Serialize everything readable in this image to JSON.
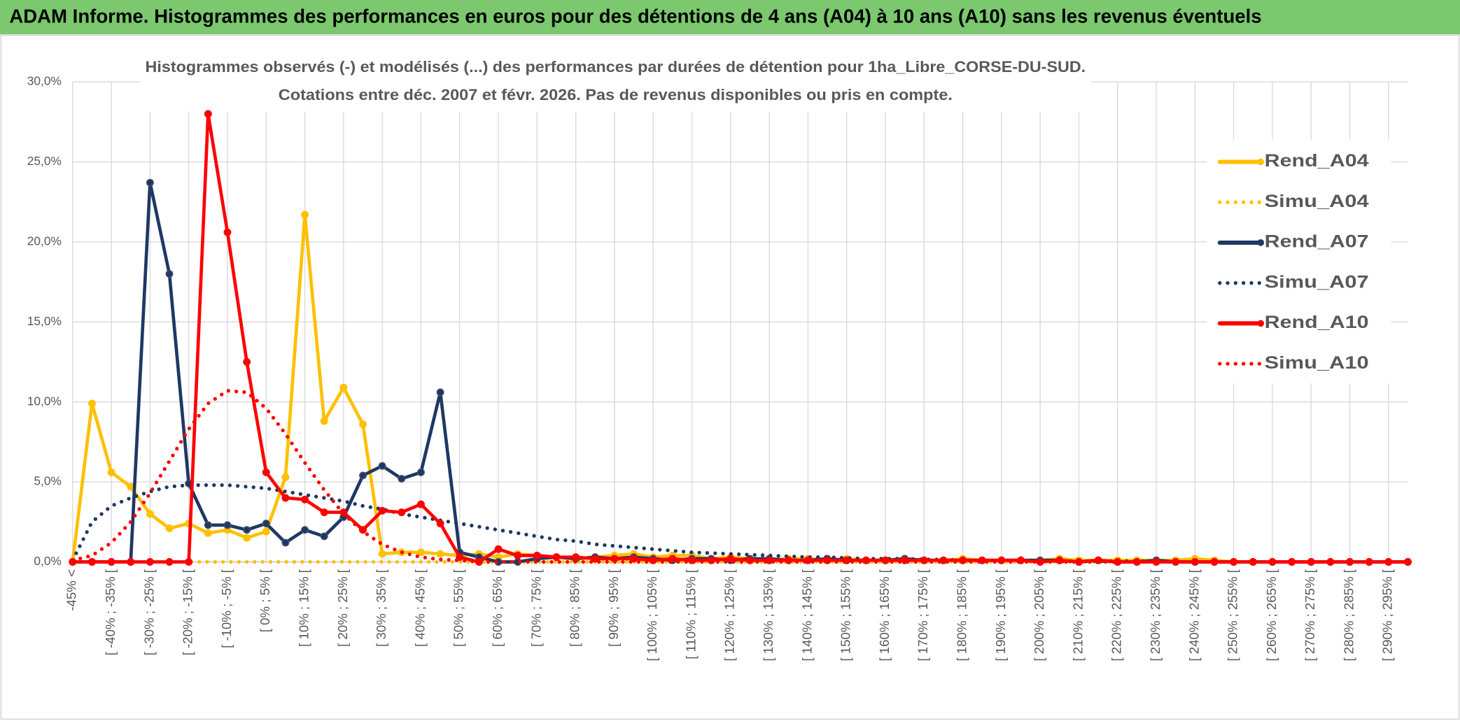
{
  "chart_data": {
    "type": "line",
    "title": "ADAM Informe. Histogrammes des performances en euros pour des détentions de 4 ans (A04) à 10 ans (A10) sans les revenus éventuels",
    "subtitle_lines": [
      "Histogrammes observés (-) et modélisés (...) des performances par durées de détention pour 1ha_Libre_CORSE-DU-SUD.",
      "Cotations entre déc. 2007 et févr. 2026. Pas de revenus disponibles ou pris en compte."
    ],
    "categories": [
      "-45% <",
      null,
      "[ -40% ; -35% [",
      null,
      "[ -30% ; -25% [",
      null,
      "[ -20% ; -15% [",
      null,
      "[ -10% ; -5% [",
      null,
      "[ 0% ; 5% [",
      null,
      "[ 10% ; 15% [",
      null,
      "[ 20% ; 25% [",
      null,
      "[ 30% ; 35% [",
      null,
      "[ 40% ; 45% [",
      null,
      "[ 50% ; 55% [",
      null,
      "[ 60% ; 65% [",
      null,
      "[ 70% ; 75% [",
      null,
      "[ 80% ; 85% [",
      null,
      "[ 90% ; 95% [",
      null,
      "[ 100% ; 105% [",
      null,
      "[ 110% ; 115% [",
      null,
      "[ 120% ; 125% [",
      null,
      "[ 130% ; 135% [",
      null,
      "[ 140% ; 145% [",
      null,
      "[ 150% ; 155% [",
      null,
      "[ 160% ; 165% [",
      null,
      "[ 170% ; 175% [",
      null,
      "[ 180% ; 185% [",
      null,
      "[ 190% ; 195% [",
      null,
      "[ 200% ; 205% [",
      null,
      "[ 210% ; 215% [",
      null,
      "[ 220% ; 225% [",
      null,
      "[ 230% ; 235% [",
      null,
      "[ 240% ; 245% [",
      null,
      "[ 250% ; 255% [",
      null,
      "[ 260% ; 265% [",
      null,
      "[ 270% ; 275% [",
      null,
      "[ 280% ; 285% [",
      null,
      "[ 290% ; 295% [",
      null
    ],
    "series": [
      {
        "name": "Rend_A04",
        "color": "#FFC000",
        "style": "solid",
        "values": [
          0,
          9.9,
          5.6,
          4.7,
          3.0,
          2.1,
          2.4,
          1.8,
          2.0,
          1.5,
          1.9,
          5.3,
          21.7,
          8.8,
          10.9,
          8.6,
          0.5,
          0.6,
          0.6,
          0.5,
          0.4,
          0.5,
          0.3,
          0.5,
          0.4,
          0.3,
          0.2,
          0.3,
          0.4,
          0.5,
          0.3,
          0.4,
          0.4,
          0.2,
          0.3,
          0.2,
          0.1,
          0.2,
          0.2,
          0.1,
          0.2,
          0.1,
          0.1,
          0.2,
          0.1,
          0.1,
          0.2,
          0.1,
          0.1,
          0.1,
          0.1,
          0.2,
          0.1,
          0.1,
          0.1,
          0.1,
          0.1,
          0.1,
          0.2,
          0.1,
          0,
          0,
          0,
          0,
          0,
          0,
          0,
          0,
          0,
          0
        ]
      },
      {
        "name": "Simu_A04",
        "color": "#FFC000",
        "style": "dotted",
        "values": [
          0,
          0,
          0,
          0,
          0,
          0,
          0,
          0,
          0,
          0,
          0,
          0,
          0,
          0,
          0,
          0,
          0,
          0,
          0,
          0,
          0,
          0,
          0,
          0,
          0,
          0,
          0,
          0,
          0,
          0,
          0,
          0,
          0,
          0,
          0,
          0,
          0,
          0,
          0,
          0,
          0,
          0,
          0,
          0,
          0,
          0,
          0,
          0,
          0,
          0,
          0,
          0,
          0,
          0,
          0,
          0,
          0,
          0,
          0,
          0,
          0,
          0,
          0,
          0,
          0,
          0,
          0,
          0,
          0,
          0
        ]
      },
      {
        "name": "Rend_A07",
        "color": "#1F3864",
        "style": "solid",
        "values": [
          0,
          0,
          0,
          0,
          23.7,
          18.0,
          4.9,
          2.3,
          2.3,
          2.0,
          2.4,
          1.2,
          2.0,
          1.6,
          2.8,
          5.4,
          6.0,
          5.2,
          5.6,
          10.6,
          0.6,
          0.3,
          0,
          0,
          0.2,
          0.3,
          0.2,
          0.3,
          0.2,
          0.3,
          0.2,
          0.1,
          0.2,
          0.2,
          0.1,
          0.2,
          0.2,
          0.1,
          0.1,
          0.2,
          0.1,
          0.1,
          0.1,
          0.2,
          0.1,
          0.1,
          0.1,
          0.1,
          0.1,
          0.1,
          0.1,
          0.1,
          0,
          0.1,
          0,
          0,
          0.1,
          0,
          0,
          0,
          0,
          0,
          0,
          0,
          0,
          0,
          0,
          0,
          0,
          0
        ]
      },
      {
        "name": "Simu_A07",
        "color": "#1F3864",
        "style": "dotted",
        "values": [
          0.1,
          2.5,
          3.5,
          4.0,
          4.4,
          4.7,
          4.8,
          4.8,
          4.8,
          4.7,
          4.6,
          4.4,
          4.2,
          4.0,
          3.8,
          3.5,
          3.3,
          3.0,
          2.8,
          2.6,
          2.4,
          2.2,
          2.0,
          1.8,
          1.6,
          1.4,
          1.3,
          1.1,
          1.0,
          0.9,
          0.8,
          0.7,
          0.6,
          0.55,
          0.5,
          0.45,
          0.4,
          0.35,
          0.3,
          0.3,
          0.25,
          0.2,
          0.2,
          0.2,
          0.15,
          0.15,
          0.1,
          0.1,
          0.1,
          0.1,
          0.1,
          0.05,
          0.05,
          0.05,
          0.05,
          0.05,
          0.05,
          0,
          0,
          0,
          0,
          0,
          0,
          0,
          0,
          0,
          0,
          0,
          0,
          0
        ]
      },
      {
        "name": "Rend_A10",
        "color": "#FF0000",
        "style": "solid",
        "values": [
          0,
          0,
          0,
          0,
          0,
          0,
          0,
          28.0,
          20.6,
          12.5,
          5.6,
          4.0,
          3.9,
          3.1,
          3.1,
          2.0,
          3.2,
          3.1,
          3.6,
          2.4,
          0.3,
          0,
          0.8,
          0.4,
          0.4,
          0.3,
          0.3,
          0.2,
          0.2,
          0.2,
          0.1,
          0.2,
          0.1,
          0.1,
          0.2,
          0.1,
          0.1,
          0.1,
          0.1,
          0.1,
          0.1,
          0.1,
          0.1,
          0.1,
          0.1,
          0.1,
          0.1,
          0.1,
          0.1,
          0.1,
          0,
          0.1,
          0,
          0.1,
          0,
          0,
          0,
          0,
          0,
          0,
          0,
          0,
          0,
          0,
          0,
          0,
          0,
          0,
          0,
          0
        ]
      },
      {
        "name": "Simu_A10",
        "color": "#FF0000",
        "style": "dotted",
        "values": [
          0.1,
          0.4,
          1.2,
          2.5,
          4.3,
          6.3,
          8.3,
          9.9,
          10.7,
          10.6,
          9.6,
          8.0,
          6.2,
          4.5,
          3.0,
          1.9,
          1.1,
          0.6,
          0.3,
          0.15,
          0.1,
          0,
          0,
          0,
          0,
          0,
          0,
          0,
          0,
          0,
          0,
          0,
          0,
          0,
          0,
          0,
          0,
          0,
          0,
          0,
          0,
          0,
          0,
          0,
          0,
          0,
          0,
          0,
          0,
          0,
          0,
          0,
          0,
          0,
          0,
          0,
          0,
          0,
          0,
          0,
          0,
          0,
          0,
          0,
          0,
          0,
          0,
          0,
          0,
          0
        ]
      }
    ],
    "ylim": [
      0,
      30
    ],
    "yticks": [
      {
        "value": 0,
        "label": "0,0%"
      },
      {
        "value": 5,
        "label": "5,0%"
      },
      {
        "value": 10,
        "label": "10,0%"
      },
      {
        "value": 15,
        "label": "15,0%"
      },
      {
        "value": 20,
        "label": "20,0%"
      },
      {
        "value": 25,
        "label": "25,0%"
      },
      {
        "value": 30,
        "label": "30,0%"
      }
    ],
    "grid": true,
    "legend": "right"
  }
}
